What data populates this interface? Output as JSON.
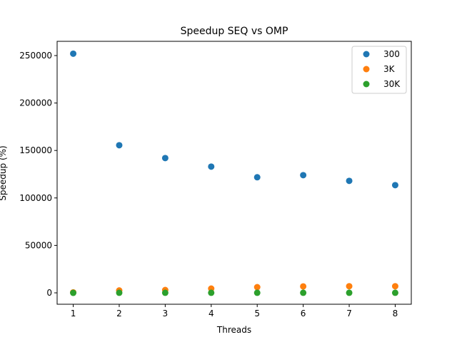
{
  "chart_data": {
    "type": "scatter",
    "title": "Speedup SEQ vs OMP",
    "xlabel": "Threads",
    "ylabel": "Speedup (%)",
    "x": [
      1,
      2,
      3,
      4,
      5,
      6,
      7,
      8
    ],
    "xticks": [
      "1",
      "2",
      "3",
      "4",
      "5",
      "6",
      "7",
      "8"
    ],
    "yticks": [
      "0",
      "50000",
      "100000",
      "150000",
      "200000",
      "250000"
    ],
    "xlim": [
      0.65,
      8.35
    ],
    "ylim": [
      -12000,
      265000
    ],
    "grid": false,
    "legend_position": "top-right",
    "series": [
      {
        "name": "300",
        "color": "#1f77b4",
        "values": [
          252000,
          155500,
          142000,
          133000,
          121800,
          124000,
          118000,
          113500
        ]
      },
      {
        "name": "3K",
        "color": "#ff7f0e",
        "values": [
          500,
          2500,
          3000,
          4500,
          6000,
          6800,
          7000,
          7000
        ]
      },
      {
        "name": "30K",
        "color": "#2ca02c",
        "values": [
          0,
          100,
          100,
          100,
          100,
          100,
          100,
          100
        ]
      }
    ]
  }
}
